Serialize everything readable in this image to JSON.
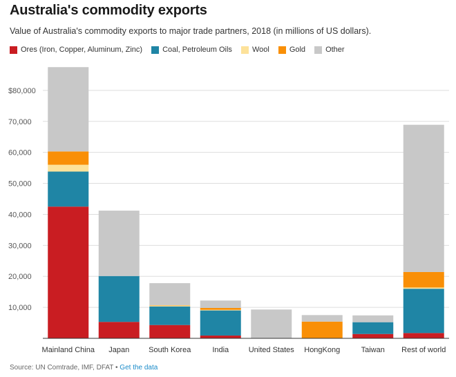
{
  "chart_data": {
    "type": "bar",
    "stacked": true,
    "title": "Australia's commodity exports",
    "subtitle": "Value of Australia's commodity exports to major trade partners, 2018 (in millions of US dollars).",
    "categories": [
      "Mainland China",
      "Japan",
      "South Korea",
      "India",
      "United States",
      "HongKong",
      "Taiwan",
      "Rest of world"
    ],
    "ylim": [
      0,
      90000
    ],
    "yticks": [
      {
        "value": 10000,
        "label": "10,000"
      },
      {
        "value": 20000,
        "label": "20,000"
      },
      {
        "value": 30000,
        "label": "30,000"
      },
      {
        "value": 40000,
        "label": "40,000"
      },
      {
        "value": 50000,
        "label": "50,000"
      },
      {
        "value": 60000,
        "label": "60,000"
      },
      {
        "value": 70000,
        "label": "70,000"
      },
      {
        "value": 80000,
        "label": "$80,000"
      }
    ],
    "grid": true,
    "legend_position": "top-left",
    "series": [
      {
        "name": "Ores (Iron, Copper, Aluminum, Zinc)",
        "color": "#c91d22",
        "values": [
          42500,
          5300,
          4300,
          900,
          0,
          0,
          1400,
          1700
        ]
      },
      {
        "name": "Coal, Petroleum Oils",
        "color": "#1f85a5",
        "values": [
          11300,
          14800,
          6000,
          8100,
          0,
          0,
          3800,
          14300
        ]
      },
      {
        "name": "Wool",
        "color": "#fde29a",
        "values": [
          2200,
          0,
          300,
          200,
          0,
          0,
          0,
          400
        ]
      },
      {
        "name": "Gold",
        "color": "#f98f07",
        "values": [
          4300,
          0,
          100,
          600,
          0,
          5400,
          0,
          5000
        ]
      },
      {
        "name": "Other",
        "color": "#c8c8c8",
        "values": [
          27200,
          21100,
          7100,
          2400,
          9300,
          2100,
          2200,
          47500
        ]
      }
    ]
  },
  "footer": {
    "source": "Source: UN Comtrade, IMF, DFAT",
    "separator": " • ",
    "link": "Get the data"
  }
}
